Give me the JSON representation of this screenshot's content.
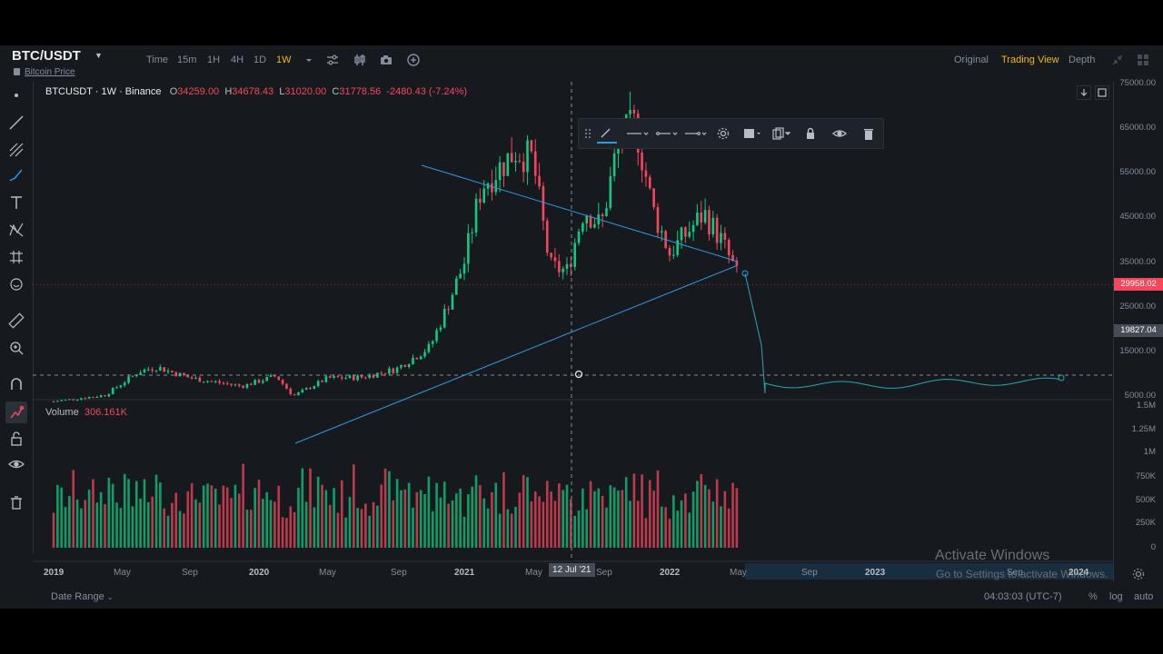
{
  "header": {
    "symbol": "BTC/USDT",
    "subtitle": "Bitcoin Price",
    "timeframes": [
      "Time",
      "15m",
      "1H",
      "4H",
      "1D",
      "1W"
    ],
    "active_timeframe": "1W",
    "views": [
      "Original",
      "Trading View",
      "Depth"
    ],
    "active_view": "Trading View"
  },
  "legend": {
    "name": "BTCUSDT · 1W · Binance",
    "open_label": "O",
    "open": "34259.00",
    "high_label": "H",
    "high": "34678.43",
    "low_label": "L",
    "low": "31020.00",
    "close_label": "C",
    "close": "31778.56",
    "change": "-2480.43 (-7.24%)"
  },
  "volume_legend": {
    "label": "Volume",
    "value": "306.161K"
  },
  "price_axis": [
    "75000.00",
    "65000.00",
    "55000.00",
    "45000.00",
    "35000.00",
    "25000.00",
    "15000.00",
    "5000.00"
  ],
  "volume_axis": [
    "1.5M",
    "1.25M",
    "1M",
    "750K",
    "500K",
    "250K",
    "0"
  ],
  "time_axis": [
    "2019",
    "May",
    "Sep",
    "2020",
    "May",
    "Sep",
    "2021",
    "May",
    "Sep",
    "2022",
    "May",
    "Sep",
    "2023",
    "Sep",
    "2024"
  ],
  "crosshair": {
    "time_label": "12 Jul '21",
    "price_label": "19827.04"
  },
  "last_price": "29958.02",
  "bottom": {
    "date_range": "Date Range",
    "clock": "04:03:03 (UTC-7)",
    "percent": "%",
    "log": "log",
    "auto": "auto"
  },
  "watermark": {
    "title": "Activate Windows",
    "subtitle": "Go to Settings to activate Windows."
  },
  "colors": {
    "up": "#0ecb81",
    "down": "#f6465d",
    "accent": "#f0b90b",
    "line": "#2e9ae6",
    "forecast": "#28a7b5"
  },
  "chart_data": {
    "type": "candlestick",
    "interval": "1W",
    "x_range": [
      "2019-01",
      "2024-01"
    ],
    "ylim": [
      5000,
      75000
    ],
    "ohlc_last": {
      "open": 34259.0,
      "high": 34678.43,
      "low": 31020.0,
      "close": 31778.56
    },
    "series": [
      {
        "name": "BTCUSDT",
        "points": [
          [
            "2019-01",
            3800
          ],
          [
            "2019-04",
            5200
          ],
          [
            "2019-06",
            10500
          ],
          [
            "2019-07",
            11500
          ],
          [
            "2019-09",
            9000
          ],
          [
            "2019-12",
            7200
          ],
          [
            "2020-02",
            9500
          ],
          [
            "2020-03",
            5000
          ],
          [
            "2020-05",
            9000
          ],
          [
            "2020-07",
            9200
          ],
          [
            "2020-09",
            11000
          ],
          [
            "2020-11",
            16000
          ],
          [
            "2020-12",
            25000
          ],
          [
            "2021-01",
            35000
          ],
          [
            "2021-02",
            52000
          ],
          [
            "2021-04",
            60000
          ],
          [
            "2021-05",
            58000
          ],
          [
            "2021-06",
            34000
          ],
          [
            "2021-07",
            33000
          ],
          [
            "2021-08",
            47000
          ],
          [
            "2021-09",
            43000
          ],
          [
            "2021-10",
            62000
          ],
          [
            "2021-11",
            66000
          ],
          [
            "2021-12",
            47000
          ],
          [
            "2022-01",
            37000
          ],
          [
            "2022-03",
            46000
          ],
          [
            "2022-04",
            40000
          ],
          [
            "2022-05",
            31778
          ]
        ]
      },
      {
        "name": "Volume",
        "last": "306.161K"
      }
    ]
  }
}
